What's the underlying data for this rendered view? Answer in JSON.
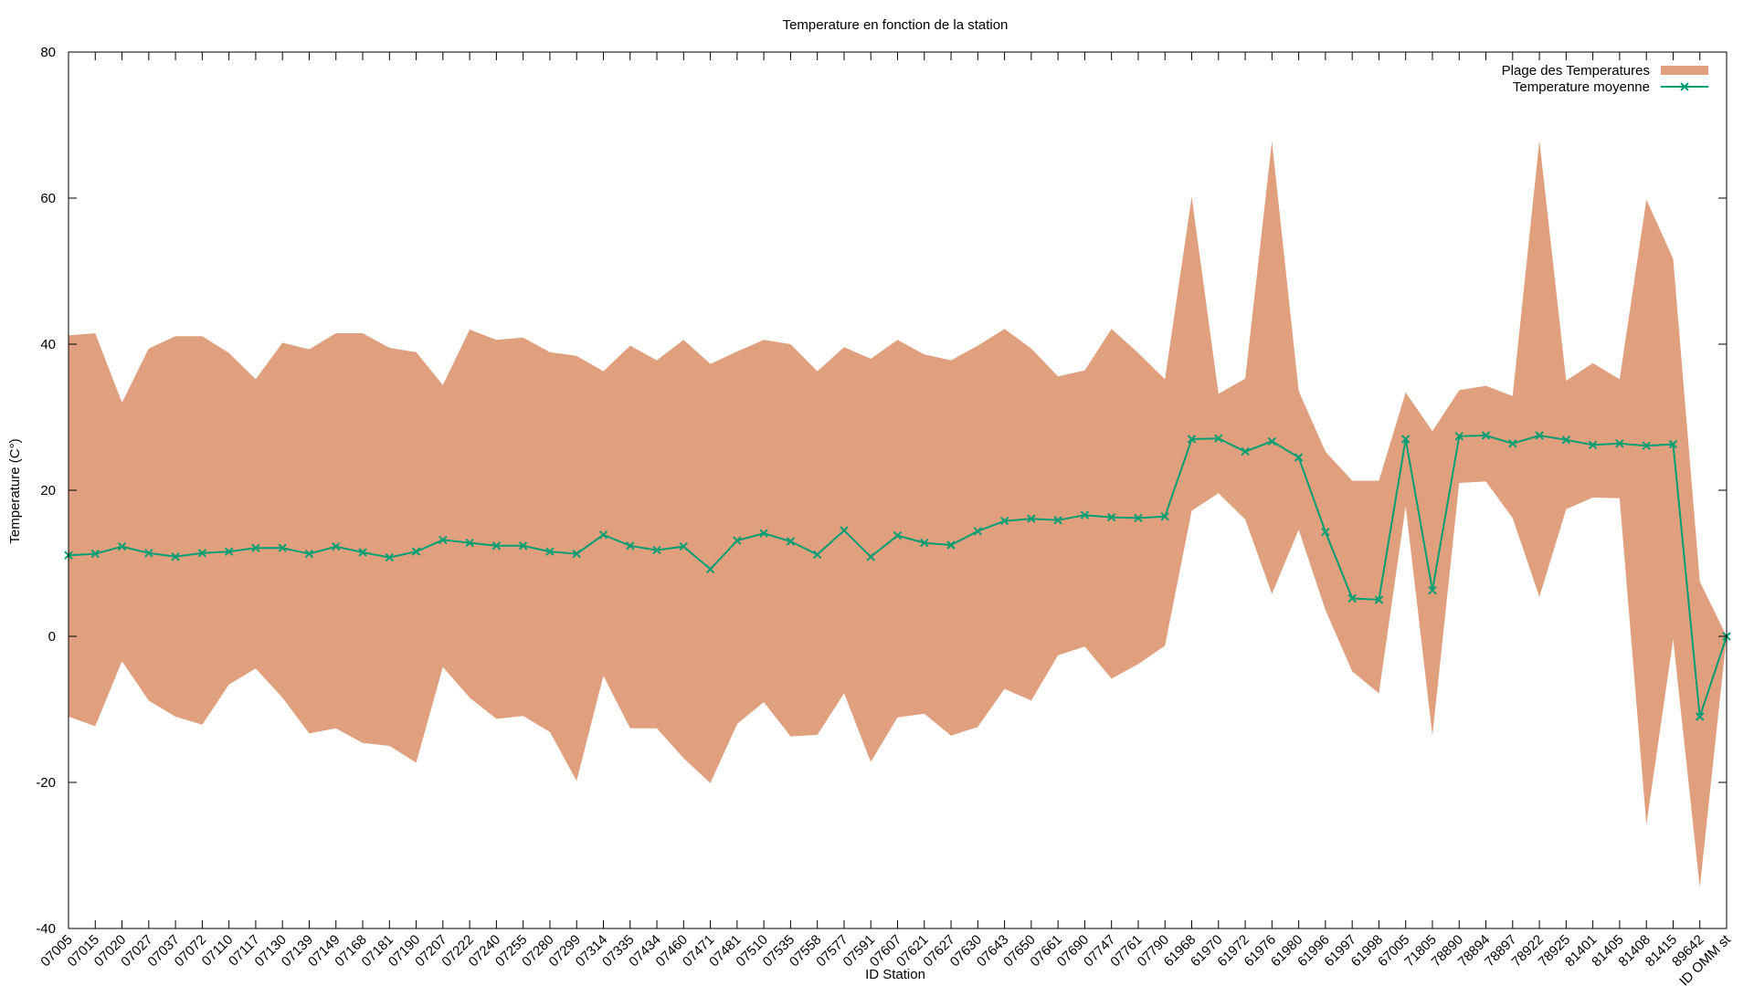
{
  "chart_data": {
    "type": "area",
    "title": "Temperature en fonction de la station",
    "xlabel": "ID Station",
    "ylabel": "Temperature (C°)",
    "ylim": [
      -40,
      80
    ],
    "yticks": [
      -40,
      -20,
      0,
      20,
      40,
      60,
      80
    ],
    "grid": false,
    "legend_position": "top-right",
    "categories": [
      "07005",
      "07015",
      "07020",
      "07027",
      "07037",
      "07072",
      "07110",
      "07117",
      "07130",
      "07139",
      "07149",
      "07168",
      "07181",
      "07190",
      "07207",
      "07222",
      "07240",
      "07255",
      "07280",
      "07299",
      "07314",
      "07335",
      "07434",
      "07460",
      "07471",
      "07481",
      "07510",
      "07535",
      "07558",
      "07577",
      "07591",
      "07607",
      "07621",
      "07627",
      "07630",
      "07643",
      "07650",
      "07661",
      "07690",
      "07747",
      "07761",
      "07790",
      "61968",
      "61970",
      "61972",
      "61976",
      "61980",
      "61996",
      "61997",
      "61998",
      "67005",
      "71805",
      "78890",
      "78894",
      "78897",
      "78922",
      "78925",
      "81401",
      "81405",
      "81408",
      "81415",
      "89642",
      "ID OMM st"
    ],
    "series": [
      {
        "name": "Plage des Temperatures",
        "kind": "range",
        "color": "#e0a07e",
        "max": [
          41.2,
          41.5,
          32,
          39.4,
          41.1,
          41.1,
          38.8,
          35.2,
          40.2,
          39.3,
          41.5,
          41.5,
          39.5,
          38.9,
          34.4,
          42,
          40.6,
          40.9,
          38.9,
          38.4,
          36.3,
          39.8,
          37.8,
          40.6,
          37.3,
          39,
          40.6,
          40,
          36.3,
          39.6,
          38,
          40.6,
          38.6,
          37.8,
          39.8,
          42.1,
          39.4,
          35.6,
          36.4,
          42.1,
          38.8,
          35.2,
          60.2,
          33.2,
          35.3,
          67.8,
          33.6,
          25.3,
          21.3,
          21.3,
          33.4,
          28.1,
          33.7,
          34.3,
          32.9,
          67.9,
          35,
          37.4,
          35.2,
          59.8,
          51.7,
          7.5,
          0
        ],
        "min": [
          -11,
          -12.3,
          -3.4,
          -8.8,
          -11,
          -12.1,
          -6.6,
          -4.4,
          -8.4,
          -13.3,
          -12.6,
          -14.6,
          -15,
          -17.3,
          -4.2,
          -8.4,
          -11.3,
          -10.9,
          -13.1,
          -19.8,
          -5.4,
          -12.6,
          -12.6,
          -16.7,
          -20.1,
          -12,
          -9,
          -13.7,
          -13.5,
          -7.8,
          -17.2,
          -11.1,
          -10.6,
          -13.6,
          -12.4,
          -7.2,
          -8.8,
          -2.6,
          -1.4,
          -5.8,
          -3.8,
          -1.3,
          17.2,
          19.6,
          16,
          5.8,
          14.6,
          3.6,
          -4.8,
          -7.8,
          17.8,
          -13.6,
          21,
          21.2,
          16.2,
          5.4,
          17.4,
          19,
          18.9,
          -25.8,
          -0.4,
          -34.4,
          0
        ]
      },
      {
        "name": "Temperature moyenne",
        "kind": "line",
        "color": "#009e73",
        "values": [
          11.1,
          11.3,
          12.3,
          11.4,
          10.9,
          11.4,
          11.6,
          12.1,
          12.1,
          11.3,
          12.3,
          11.5,
          10.8,
          11.6,
          13.2,
          12.8,
          12.4,
          12.4,
          11.6,
          11.3,
          13.9,
          12.4,
          11.8,
          12.3,
          9.2,
          13.1,
          14.1,
          13,
          11.2,
          14.5,
          10.9,
          13.8,
          12.8,
          12.5,
          14.4,
          15.8,
          16.1,
          15.9,
          16.6,
          16.3,
          16.2,
          16.4,
          27,
          27.1,
          25.3,
          26.7,
          24.5,
          14.3,
          5.2,
          5,
          27,
          6.3,
          27.4,
          27.5,
          26.4,
          27.5,
          26.9,
          26.2,
          26.4,
          26.1,
          26.3,
          -11,
          0
        ]
      }
    ]
  },
  "colors": {
    "range_fill": "#e0a07e",
    "mean_line": "#009e73",
    "axis": "#000000"
  }
}
